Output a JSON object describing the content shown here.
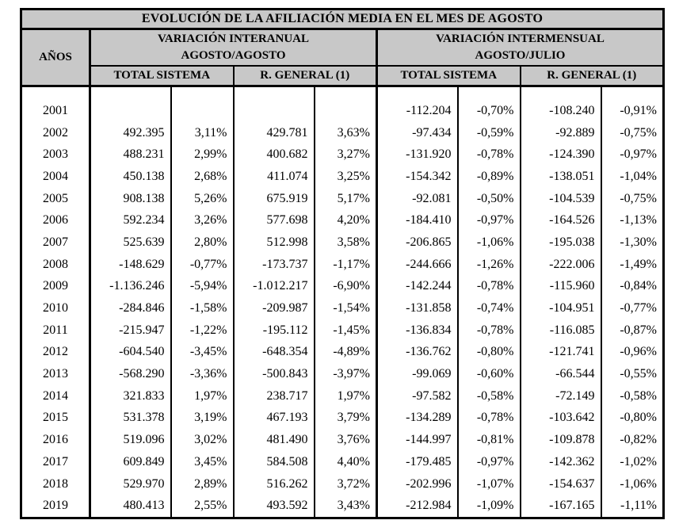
{
  "title": "EVOLUCIÓN DE LA AFILIACIÓN MEDIA EN EL MES DE AGOSTO",
  "colors": {
    "header_bg": "#c8c8c8",
    "border": "#000000",
    "body_bg": "#ffffff",
    "text": "#000000"
  },
  "table": {
    "years_header": "AÑOS",
    "groups": [
      {
        "title": "VARIACIÓN INTERANUAL",
        "subtitle": "AGOSTO/AGOSTO",
        "subcolumns": [
          "TOTAL SISTEMA",
          "R. GENERAL (1)"
        ]
      },
      {
        "title": "VARIACIÓN INTERMENSUAL",
        "subtitle": "AGOSTO/JULIO",
        "subcolumns": [
          "TOTAL SISTEMA",
          "R. GENERAL (1)"
        ]
      }
    ],
    "column_kinds": [
      "year",
      "absolute",
      "percent",
      "absolute",
      "percent",
      "absolute",
      "percent",
      "absolute",
      "percent"
    ],
    "rows": [
      [
        "2001",
        "",
        "",
        "",
        "",
        "-112.204",
        "-0,70%",
        "-108.240",
        "-0,91%"
      ],
      [
        "2002",
        "492.395",
        "3,11%",
        "429.781",
        "3,63%",
        "-97.434",
        "-0,59%",
        "-92.889",
        "-0,75%"
      ],
      [
        "2003",
        "488.231",
        "2,99%",
        "400.682",
        "3,27%",
        "-131.920",
        "-0,78%",
        "-124.390",
        "-0,97%"
      ],
      [
        "2004",
        "450.138",
        "2,68%",
        "411.074",
        "3,25%",
        "-154.342",
        "-0,89%",
        "-138.051",
        "-1,04%"
      ],
      [
        "2005",
        "908.138",
        "5,26%",
        "675.919",
        "5,17%",
        "-92.081",
        "-0,50%",
        "-104.539",
        "-0,75%"
      ],
      [
        "2006",
        "592.234",
        "3,26%",
        "577.698",
        "4,20%",
        "-184.410",
        "-0,97%",
        "-164.526",
        "-1,13%"
      ],
      [
        "2007",
        "525.639",
        "2,80%",
        "512.998",
        "3,58%",
        "-206.865",
        "-1,06%",
        "-195.038",
        "-1,30%"
      ],
      [
        "2008",
        "-148.629",
        "-0,77%",
        "-173.737",
        "-1,17%",
        "-244.666",
        "-1,26%",
        "-222.006",
        "-1,49%"
      ],
      [
        "2009",
        "-1.136.246",
        "-5,94%",
        "-1.012.217",
        "-6,90%",
        "-142.244",
        "-0,78%",
        "-115.960",
        "-0,84%"
      ],
      [
        "2010",
        "-284.846",
        "-1,58%",
        "-209.987",
        "-1,54%",
        "-131.858",
        "-0,74%",
        "-104.951",
        "-0,77%"
      ],
      [
        "2011",
        "-215.947",
        "-1,22%",
        "-195.112",
        "-1,45%",
        "-136.834",
        "-0,78%",
        "-116.085",
        "-0,87%"
      ],
      [
        "2012",
        "-604.540",
        "-3,45%",
        "-648.354",
        "-4,89%",
        "-136.762",
        "-0,80%",
        "-121.741",
        "-0,96%"
      ],
      [
        "2013",
        "-568.290",
        "-3,36%",
        "-500.843",
        "-3,97%",
        "-99.069",
        "-0,60%",
        "-66.544",
        "-0,55%"
      ],
      [
        "2014",
        "321.833",
        "1,97%",
        "238.717",
        "1,97%",
        "-97.582",
        "-0,58%",
        "-72.149",
        "-0,58%"
      ],
      [
        "2015",
        "531.378",
        "3,19%",
        "467.193",
        "3,79%",
        "-134.289",
        "-0,78%",
        "-103.642",
        "-0,80%"
      ],
      [
        "2016",
        "519.096",
        "3,02%",
        "481.490",
        "3,76%",
        "-144.997",
        "-0,81%",
        "-109.878",
        "-0,82%"
      ],
      [
        "2017",
        "609.849",
        "3,45%",
        "584.508",
        "4,40%",
        "-179.485",
        "-0,97%",
        "-142.362",
        "-1,02%"
      ],
      [
        "2018",
        "529.970",
        "2,89%",
        "516.262",
        "3,72%",
        "-202.996",
        "-1,07%",
        "-154.637",
        "-1,06%"
      ],
      [
        "2019",
        "480.413",
        "2,55%",
        "493.592",
        "3,43%",
        "-212.984",
        "-1,09%",
        "-167.165",
        "-1,11%"
      ]
    ]
  }
}
